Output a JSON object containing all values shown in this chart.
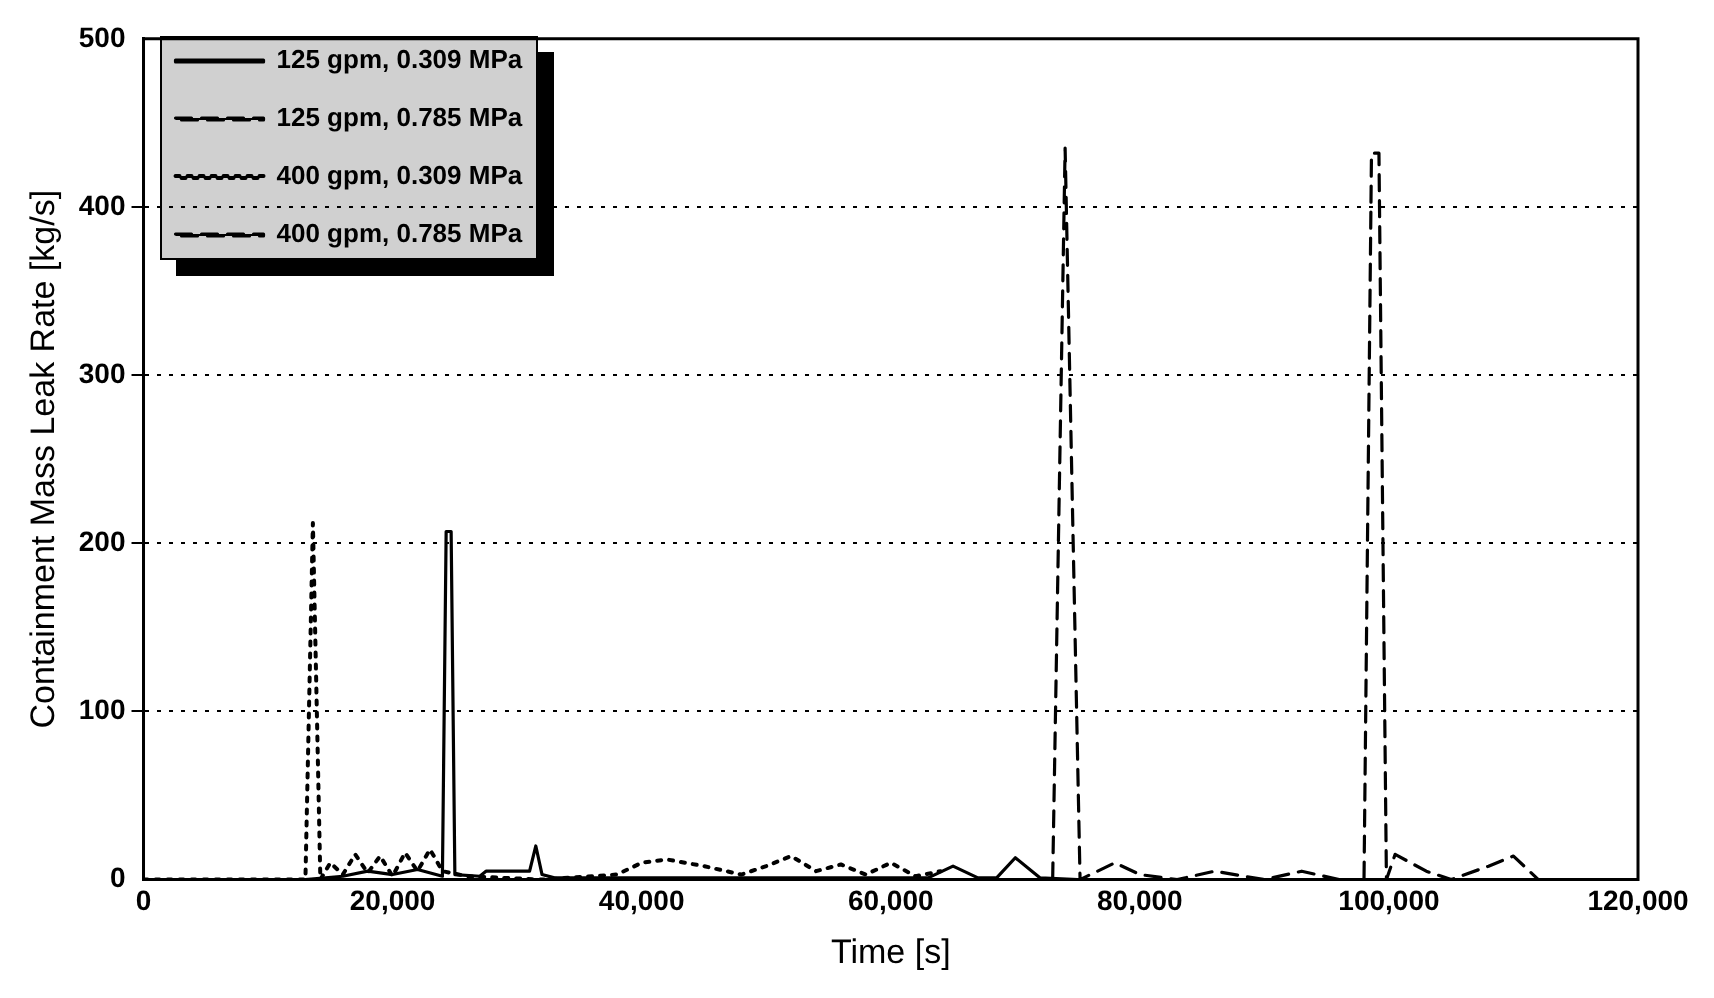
{
  "chart_data": {
    "type": "line",
    "xlabel": "Time [s]",
    "ylabel": "Containment Mass Leak Rate [kg/s]",
    "xlim": [
      0,
      120000
    ],
    "xticks": [
      0,
      {
        "value": 20000,
        "label": "20,000"
      },
      {
        "value": 40000,
        "label": "40,000"
      },
      {
        "value": 60000,
        "label": "60,000"
      },
      {
        "value": 80000,
        "label": "80,000"
      },
      {
        "value": 100000,
        "label": "100,000"
      },
      {
        "value": 120000,
        "label": "120,000"
      }
    ],
    "ylim": [
      0,
      500
    ],
    "yticks": [
      0,
      100,
      200,
      300,
      400,
      500
    ],
    "grid": "y",
    "legend": "top left",
    "marker": "none",
    "series": [
      {
        "name": "125 gpm, 0.309 MPa",
        "color": "#000000",
        "line_style": "solid",
        "x": [
          0,
          13000,
          16000,
          18000,
          20000,
          22000,
          24000,
          24300,
          24700,
          25000,
          27000,
          27500,
          31000,
          31500,
          32000,
          33000,
          40000,
          60000,
          63000,
          65000,
          67000,
          68500,
          70000,
          72000,
          75000
        ],
        "values": [
          0,
          0,
          2,
          5,
          3,
          6,
          2,
          207,
          207,
          3,
          2,
          5,
          5,
          20,
          3,
          1,
          1,
          1,
          1,
          8,
          1,
          1,
          13,
          1,
          0
        ]
      },
      {
        "name": "125 gpm, 0.785 MPa",
        "color": "#000000",
        "line_style": "dashed",
        "x": [
          0,
          73000,
          74000,
          75200,
          78000,
          80000,
          83000,
          86000,
          90000,
          93000,
          96000,
          98000
        ],
        "values": [
          0,
          0,
          435,
          0,
          10,
          3,
          0,
          5,
          0,
          5,
          0,
          0
        ]
      },
      {
        "name": "400 gpm, 0.309 MPa",
        "color": "#000000",
        "line_style": "dotted",
        "x": [
          0,
          13000,
          13600,
          14200,
          15000,
          16000,
          17000,
          18000,
          19000,
          20000,
          21000,
          22000,
          23000,
          24000,
          26000,
          32000,
          38000,
          40000,
          42000,
          45000,
          48000,
          50000,
          52000,
          54000,
          56000,
          58000,
          60000,
          62000,
          64000
        ],
        "values": [
          0,
          0,
          212,
          0,
          10,
          3,
          15,
          4,
          14,
          2,
          16,
          5,
          18,
          5,
          2,
          0,
          3,
          10,
          12,
          8,
          3,
          8,
          14,
          5,
          9,
          3,
          10,
          2,
          5
        ]
      },
      {
        "name": "400 gpm, 0.785 MPa",
        "color": "#000000",
        "line_style": "dashed",
        "x": [
          0,
          98000,
          98600,
          99200,
          99800,
          100500,
          103000,
          105000,
          108000,
          110000,
          112000
        ],
        "values": [
          0,
          0,
          432,
          432,
          0,
          15,
          5,
          0,
          8,
          14,
          0
        ]
      }
    ]
  }
}
